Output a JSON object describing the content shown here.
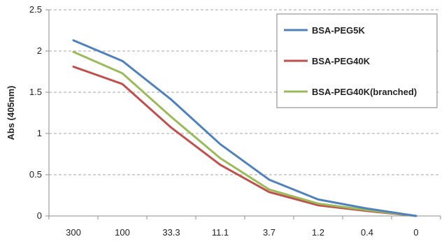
{
  "chart_data": {
    "type": "line",
    "title": "",
    "xlabel": "",
    "ylabel": "Abs (405nm)",
    "categories": [
      "300",
      "100",
      "33.3",
      "11.1",
      "3.7",
      "1.2",
      "0.4",
      "0"
    ],
    "ylim": [
      0,
      2.5
    ],
    "yticks": [
      "0",
      "0.5",
      "1",
      "1.5",
      "2",
      "2.5"
    ],
    "grid": "horizontal-dashed",
    "legend_position": "top-right",
    "series": [
      {
        "name": "BSA-PEG5K",
        "color": "#4f81bd",
        "values": [
          2.13,
          1.88,
          1.41,
          0.87,
          0.44,
          0.2,
          0.09,
          0.0
        ]
      },
      {
        "name": "BSA-PEG40K",
        "color": "#c0504d",
        "values": [
          1.81,
          1.6,
          1.07,
          0.62,
          0.29,
          0.13,
          0.06,
          0.0
        ]
      },
      {
        "name": "BSA-PEG40K(branched)",
        "color": "#9bbb59",
        "values": [
          1.99,
          1.73,
          1.2,
          0.7,
          0.32,
          0.15,
          0.07,
          0.0
        ]
      }
    ]
  }
}
